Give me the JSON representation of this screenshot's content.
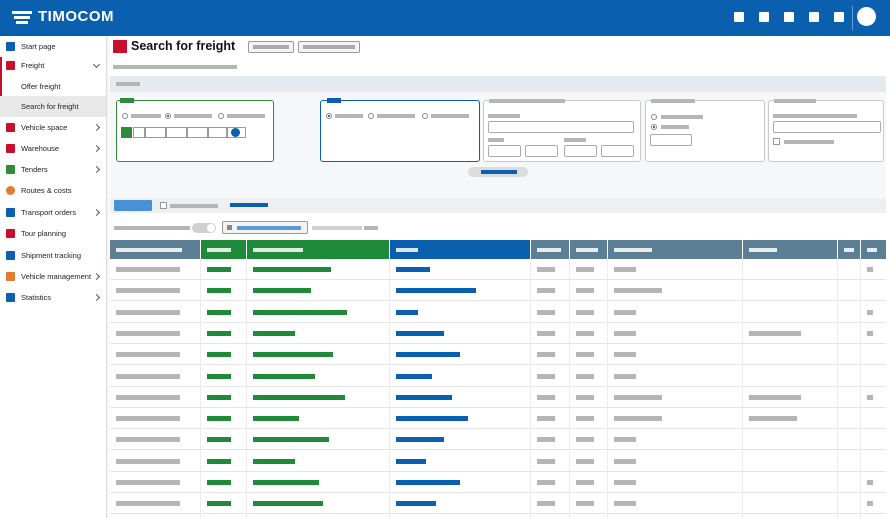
{
  "app": {
    "brand": "TIMOCOM",
    "page_title": "Search for freight",
    "colors": {
      "brand_blue": "#0a5fae",
      "freight_red": "#c8102e",
      "column_green": "#1f8a3a",
      "column_blue": "#0a5fae",
      "column_grey": "#5d7f96"
    }
  },
  "topbar": {
    "icons": [
      "apps-icon",
      "message-icon",
      "notification-icon",
      "favorite-icon",
      "help-icon"
    ],
    "avatar": "user-avatar"
  },
  "sidebar": {
    "items": [
      {
        "label": "Start page",
        "icon": "start-page-icon",
        "color": "#0a5fae",
        "chevron": false
      },
      {
        "label": "Freight",
        "icon": "freight-icon",
        "color": "#c8102e",
        "chevron": "down"
      },
      {
        "label": "Offer freight",
        "sub": true
      },
      {
        "label": "Search for freight",
        "sub": true,
        "active": true
      },
      {
        "label": "Vehicle space",
        "icon": "truck-icon",
        "color": "#c8102e",
        "chevron": "right"
      },
      {
        "label": "Warehouse",
        "icon": "warehouse-icon",
        "color": "#c8102e",
        "chevron": "right"
      },
      {
        "label": "Tenders",
        "icon": "tender-icon",
        "color": "#2f8a3a",
        "chevron": "right"
      },
      {
        "label": "Routes & costs",
        "icon": "route-icon",
        "color": "#e07b30",
        "chevron": false
      },
      {
        "label": "Transport orders",
        "icon": "order-icon",
        "color": "#0a5fae",
        "chevron": "right"
      },
      {
        "label": "Tour planning",
        "icon": "tour-icon",
        "color": "#c8102e",
        "chevron": false
      },
      {
        "label": "Shipment tracking",
        "icon": "tracking-icon",
        "color": "#0a5fae",
        "chevron": false
      },
      {
        "label": "Vehicle management",
        "icon": "vehicle-management-icon",
        "color": "#e07b30",
        "chevron": "right"
      },
      {
        "label": "Statistics",
        "icon": "statistics-icon",
        "color": "#0a5fae",
        "chevron": "right"
      }
    ]
  },
  "table": {
    "column_colors": [
      "#5d7f96",
      "#1f8a3a",
      "#1f8a3a",
      "#0a5fae",
      "#5d7f96",
      "#5d7f96",
      "#5d7f96",
      "#5d7f96",
      "#5d7f96",
      "#5d7f96"
    ],
    "row_count": 12
  }
}
